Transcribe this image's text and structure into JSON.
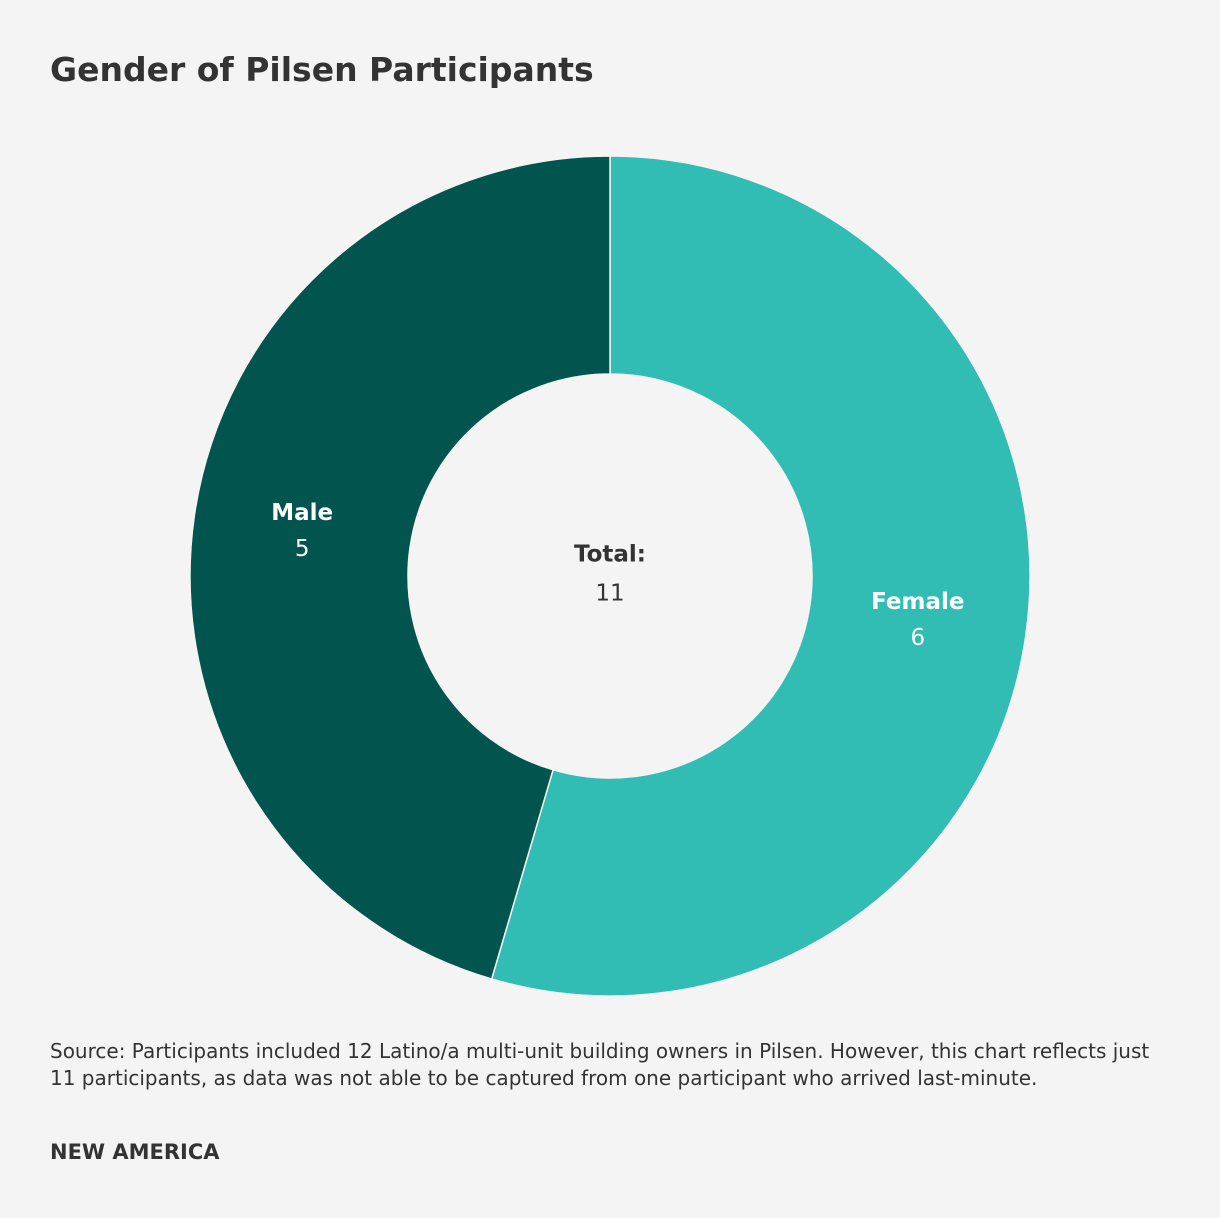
{
  "chart_data": {
    "type": "donut",
    "title": "Gender of Pilsen Participants",
    "categories": [
      "Female",
      "Male"
    ],
    "values": [
      6,
      5
    ],
    "colors": [
      "#31bcb4",
      "#02554f"
    ],
    "center_label": "Total:",
    "center_value": 11,
    "source": "Source: Participants included 12 Latino/a multi-unit building owners in Pilsen. However, this chart reflects just 11 participants, as data was not able to be captured from one participant who arrived last-minute.",
    "brand": "NEW AMERICA"
  }
}
